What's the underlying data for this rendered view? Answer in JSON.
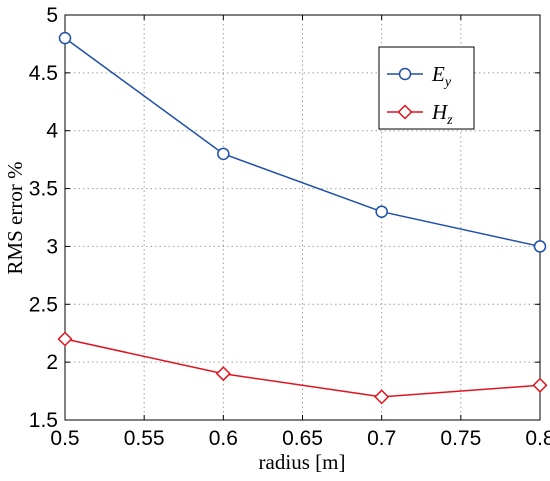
{
  "chart_data": {
    "type": "line",
    "xlabel": "radius [m]",
    "ylabel": "RMS error %",
    "xlim": [
      0.5,
      0.8
    ],
    "ylim": [
      1.5,
      5
    ],
    "xticks": [
      "0.5",
      "0.55",
      "0.6",
      "0.65",
      "0.7",
      "0.75",
      "0.8"
    ],
    "yticks": [
      "1.5",
      "2",
      "2.5",
      "3",
      "3.5",
      "4",
      "4.5",
      "5"
    ],
    "grid": true,
    "legend_position": "top-right",
    "x": [
      0.5,
      0.6,
      0.7,
      0.8
    ],
    "series": [
      {
        "name": "E",
        "subscript": "y",
        "color": "#1f4fa8",
        "marker": "circle",
        "values": [
          4.8,
          3.8,
          3.3,
          3.0
        ]
      },
      {
        "name": "H",
        "subscript": "z",
        "color": "#e0141e",
        "marker": "diamond",
        "values": [
          2.2,
          1.9,
          1.7,
          1.8
        ]
      }
    ]
  }
}
